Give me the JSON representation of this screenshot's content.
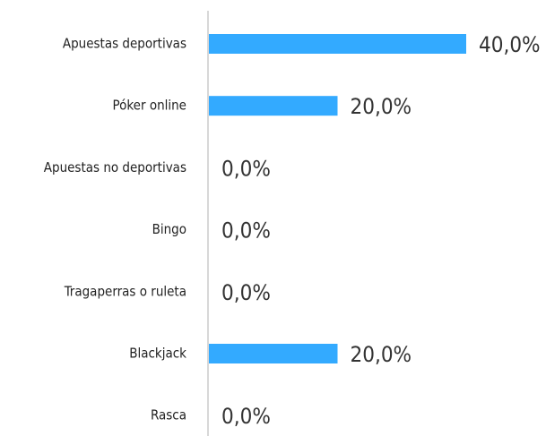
{
  "chart_data": {
    "type": "bar",
    "orientation": "horizontal",
    "categories": [
      "Apuestas deportivas",
      "Póker online",
      "Apuestas no deportivas",
      "Bingo",
      "Tragaperras o ruleta",
      "Blackjack",
      "Rasca"
    ],
    "values": [
      40,
      20,
      0,
      0,
      0,
      20,
      0
    ],
    "value_labels": [
      "40,0%",
      "20,0%",
      "0,0%",
      "0,0%",
      "0,0%",
      "20,0%",
      "0,0%"
    ],
    "color": "#33aaff"
  }
}
